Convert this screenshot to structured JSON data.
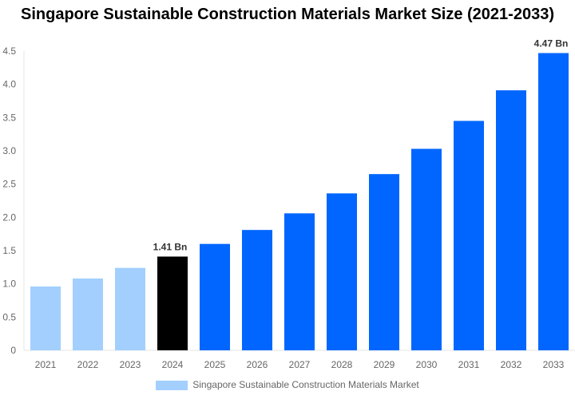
{
  "chart_data": {
    "type": "bar",
    "title": "Singapore Sustainable Construction Materials Market Size (2021-2033)",
    "categories": [
      "2021",
      "2022",
      "2023",
      "2024",
      "2025",
      "2026",
      "2027",
      "2028",
      "2029",
      "2030",
      "2031",
      "2032",
      "2033"
    ],
    "series": [
      {
        "name": "Singapore Sustainable Construction Materials Market",
        "values": [
          0.96,
          1.08,
          1.24,
          1.41,
          1.6,
          1.81,
          2.06,
          2.36,
          2.65,
          3.03,
          3.45,
          3.91,
          4.47
        ]
      }
    ],
    "data_labels": {
      "3": "1.41 Bn",
      "12": "4.47 Bn"
    },
    "ylim": [
      0,
      4.5
    ],
    "yticks": [
      "0",
      "0.5",
      "1.0",
      "1.5",
      "2.0",
      "2.5",
      "3.0",
      "3.5",
      "4.0",
      "4.5"
    ],
    "colors": {
      "historical": "#a3cfff",
      "base_year": "#000000",
      "forecast": "#0066ff"
    },
    "grid": false,
    "legend_position": "bottom",
    "xlabel": "",
    "ylabel": ""
  }
}
